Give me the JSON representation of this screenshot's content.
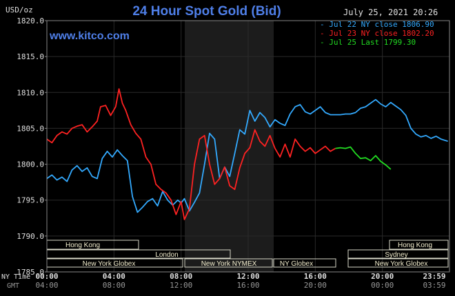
{
  "chart_data": {
    "type": "line",
    "title": "24 Hour Spot Gold (Bid)",
    "date_label": "July 25, 2021 20:26",
    "watermark": "www.kitco.com",
    "ylabel": "USD/oz",
    "ylim": [
      1785.0,
      1820.0
    ],
    "y_ticks": [
      "1820.0",
      "1815.0",
      "1810.0",
      "1805.0",
      "1800.0",
      "1795.0",
      "1790.0",
      "1785.0"
    ],
    "x_tick_labels_ny": [
      "00:00",
      "04:00",
      "08:00",
      "12:00",
      "16:00",
      "20:00",
      "23:59"
    ],
    "x_tick_labels_gmt": [
      "04:00",
      "08:00",
      "12:00",
      "16:00",
      "20:00",
      "00:00",
      "03:59"
    ],
    "x_axis_labels": {
      "ny": "NY Time",
      "gmt": "GMT"
    },
    "legend": [
      {
        "label": "Jul 22 NY close 1806.90",
        "color": "#33aaff"
      },
      {
        "label": "Jul 23 NY close 1802.20",
        "color": "#ff2222"
      },
      {
        "label": "Jul 25 Last 1799.30",
        "color": "#22dd22"
      }
    ],
    "sessions": [
      "Hong Kong",
      "London",
      "New York Globex",
      "New York NYMEX",
      "NY Globex",
      "Sydney",
      "Hong Kong",
      "New York Globex"
    ],
    "series": [
      {
        "color": "#33aaff",
        "x": [
          0,
          0.3,
          0.6,
          0.9,
          1.2,
          1.5,
          1.8,
          2.1,
          2.4,
          2.7,
          3.0,
          3.3,
          3.6,
          3.9,
          4.2,
          4.5,
          4.8,
          5.1,
          5.4,
          5.7,
          6.0,
          6.3,
          6.6,
          6.9,
          7.2,
          7.5,
          7.8,
          8.0,
          8.2,
          8.5,
          8.8,
          9.1,
          9.4,
          9.7,
          10.0,
          10.3,
          10.6,
          10.9,
          11.2,
          11.5,
          11.8,
          12.1,
          12.4,
          12.7,
          13.0,
          13.3,
          13.6,
          13.9,
          14.2,
          14.5,
          14.8,
          15.1,
          15.4,
          15.7,
          16.0,
          16.3,
          16.6,
          16.9,
          17.2,
          17.5,
          17.8,
          18.1,
          18.4,
          18.7,
          19.0,
          19.3,
          19.6,
          19.9,
          20.2,
          20.5,
          20.8,
          21.1,
          21.4,
          21.7,
          22.0,
          22.3,
          22.6,
          22.9,
          23.2,
          23.5,
          23.9
        ],
        "y": [
          1798.0,
          1798.5,
          1797.8,
          1798.2,
          1797.6,
          1799.2,
          1799.8,
          1799.0,
          1799.5,
          1798.3,
          1798.0,
          1800.8,
          1801.8,
          1801.0,
          1802.0,
          1801.2,
          1800.5,
          1795.5,
          1793.3,
          1794.0,
          1794.8,
          1795.2,
          1794.2,
          1796.2,
          1795.0,
          1794.3,
          1795.0,
          1794.6,
          1795.2,
          1793.5,
          1794.7,
          1796.0,
          1800.0,
          1804.3,
          1803.5,
          1798.0,
          1799.6,
          1798.3,
          1801.5,
          1804.8,
          1804.2,
          1807.5,
          1806.0,
          1807.2,
          1806.5,
          1805.2,
          1806.2,
          1805.7,
          1805.4,
          1807.0,
          1808.0,
          1808.3,
          1807.3,
          1807.0,
          1807.5,
          1808.0,
          1807.2,
          1806.9,
          1806.9,
          1806.9,
          1807.0,
          1807.0,
          1807.2,
          1807.8,
          1808.0,
          1808.5,
          1809.0,
          1808.4,
          1808.0,
          1808.6,
          1808.1,
          1807.6,
          1806.8,
          1805.0,
          1804.2,
          1803.8,
          1804.0,
          1803.6,
          1803.9,
          1803.5,
          1803.2
        ]
      },
      {
        "color": "#ff2222",
        "x": [
          0,
          0.3,
          0.6,
          0.9,
          1.2,
          1.5,
          1.8,
          2.1,
          2.4,
          2.7,
          3.0,
          3.2,
          3.5,
          3.8,
          4.1,
          4.3,
          4.5,
          4.7,
          5.0,
          5.3,
          5.6,
          5.9,
          6.2,
          6.5,
          6.8,
          7.1,
          7.4,
          7.7,
          8.0,
          8.2,
          8.5,
          8.8,
          9.1,
          9.4,
          9.7,
          10.0,
          10.3,
          10.6,
          10.9,
          11.2,
          11.5,
          11.8,
          12.1,
          12.4,
          12.7,
          13.0,
          13.3,
          13.6,
          13.9,
          14.2,
          14.5,
          14.8,
          15.1,
          15.4,
          15.7,
          16.0,
          16.3,
          16.6,
          16.9,
          17.2
        ],
        "y": [
          1803.5,
          1803.0,
          1804.0,
          1804.5,
          1804.2,
          1805.0,
          1805.3,
          1805.5,
          1804.5,
          1805.2,
          1806.0,
          1808.0,
          1808.2,
          1806.8,
          1808.0,
          1810.5,
          1808.5,
          1807.5,
          1805.5,
          1804.3,
          1803.5,
          1801.0,
          1800.0,
          1797.2,
          1796.5,
          1796.0,
          1795.0,
          1793.0,
          1794.8,
          1792.3,
          1793.8,
          1800.0,
          1803.5,
          1804.0,
          1800.0,
          1797.2,
          1798.0,
          1799.6,
          1797.0,
          1796.5,
          1799.5,
          1801.5,
          1802.3,
          1804.8,
          1803.2,
          1802.5,
          1804.0,
          1802.2,
          1801.0,
          1802.8,
          1801.0,
          1803.5,
          1802.5,
          1801.8,
          1802.3,
          1801.5,
          1802.0,
          1802.5,
          1801.8,
          1802.2
        ]
      },
      {
        "color": "#22dd22",
        "x": [
          17.2,
          17.5,
          17.8,
          18.1,
          18.4,
          18.7,
          19.0,
          19.3,
          19.6,
          19.9,
          20.2,
          20.5
        ],
        "y": [
          1802.2,
          1802.3,
          1802.2,
          1802.4,
          1801.5,
          1800.8,
          1800.9,
          1800.5,
          1801.2,
          1800.4,
          1799.9,
          1799.3
        ]
      }
    ]
  }
}
